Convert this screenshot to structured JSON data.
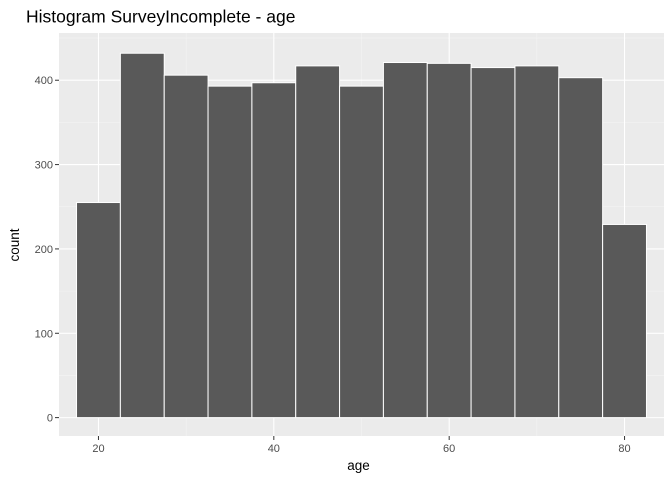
{
  "chart_data": {
    "type": "bar",
    "title": "Histogram SurveyIncomplete - age",
    "xlabel": "age",
    "ylabel": "count",
    "x_ticks": [
      20,
      40,
      60,
      80
    ],
    "y_ticks": [
      0,
      100,
      200,
      300,
      400
    ],
    "xlim": [
      15.5,
      84.5
    ],
    "ylim": [
      -21.8,
      456
    ],
    "bins": [
      {
        "x0": 17.5,
        "x1": 22.5,
        "count": 255
      },
      {
        "x0": 22.5,
        "x1": 27.5,
        "count": 432
      },
      {
        "x0": 27.5,
        "x1": 32.5,
        "count": 406
      },
      {
        "x0": 32.5,
        "x1": 37.5,
        "count": 393
      },
      {
        "x0": 37.5,
        "x1": 42.5,
        "count": 397
      },
      {
        "x0": 42.5,
        "x1": 47.5,
        "count": 417
      },
      {
        "x0": 47.5,
        "x1": 52.5,
        "count": 393
      },
      {
        "x0": 52.5,
        "x1": 57.5,
        "count": 421
      },
      {
        "x0": 57.5,
        "x1": 62.5,
        "count": 420
      },
      {
        "x0": 62.5,
        "x1": 67.5,
        "count": 415
      },
      {
        "x0": 67.5,
        "x1": 72.5,
        "count": 417
      },
      {
        "x0": 72.5,
        "x1": 77.5,
        "count": 403
      },
      {
        "x0": 77.5,
        "x1": 82.5,
        "count": 229
      }
    ],
    "grid": true,
    "colors": {
      "panel_background": "#ebebeb",
      "grid_major": "#ffffff",
      "grid_minor": "#f5f5f5",
      "bar_fill": "#595959",
      "bar_outline": "#ffffff",
      "tick_mark": "#333333"
    }
  }
}
